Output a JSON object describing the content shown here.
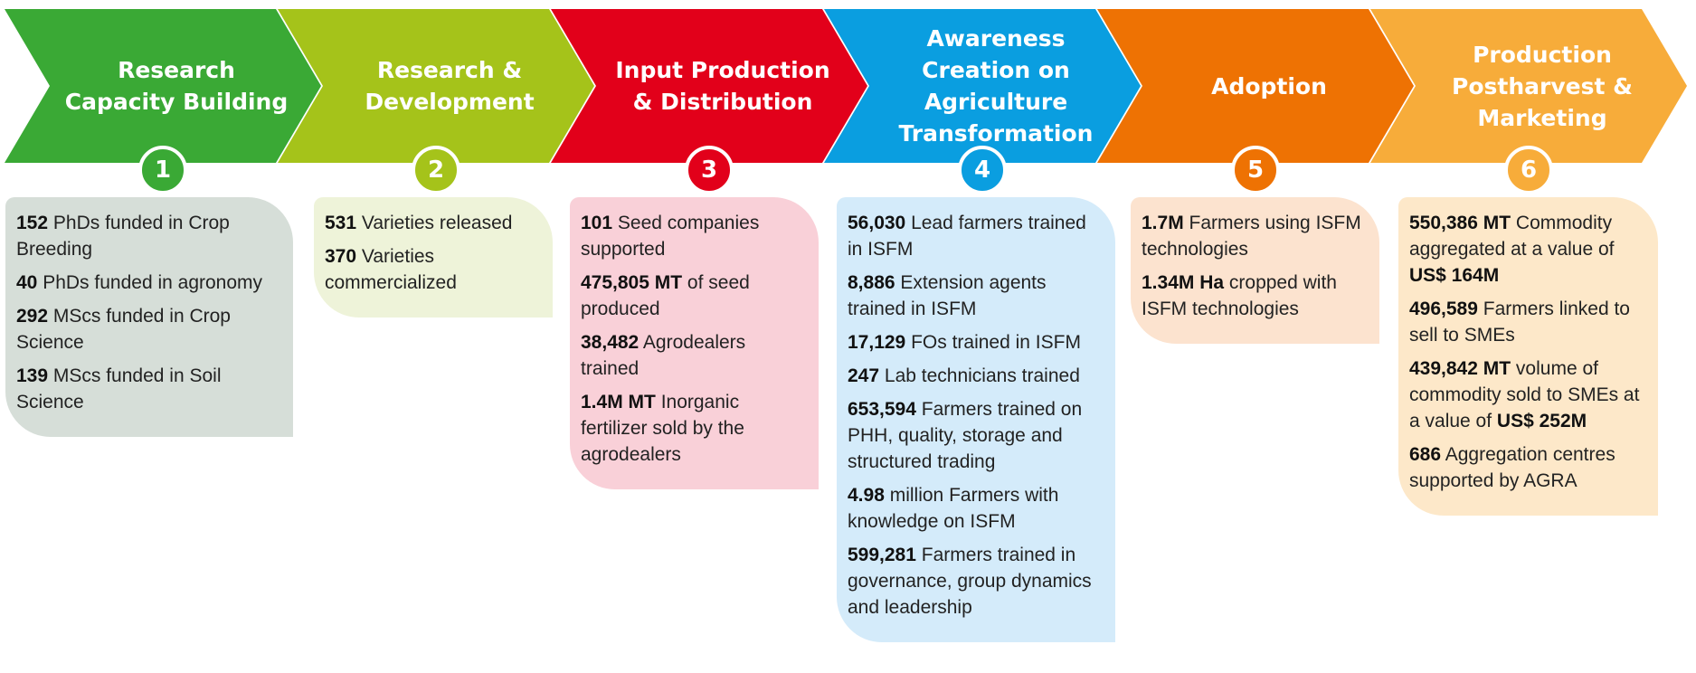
{
  "stages": [
    {
      "title": "Research Capacity Building",
      "number": "1",
      "color": "#3aa935",
      "card_color": "#d6ded8",
      "items": [
        [
          {
            "bold": "152"
          },
          {
            "text": "PhDs funded in Crop Breeding"
          }
        ],
        [
          {
            "bold": "40"
          },
          {
            "text": "PhDs funded in agronomy"
          }
        ],
        [
          {
            "bold": "292"
          },
          {
            "text": "MScs funded in Crop Science"
          }
        ],
        [
          {
            "bold": "139"
          },
          {
            "text": "MScs funded in Soil Science"
          }
        ]
      ]
    },
    {
      "title": "Research & Development",
      "number": "2",
      "color": "#a5c31a",
      "card_color": "#eef3d9",
      "items": [
        [
          {
            "bold": "531"
          },
          {
            "text": "Varieties released"
          }
        ],
        [
          {
            "bold": "370"
          },
          {
            "text": "Varieties commercialized"
          }
        ]
      ]
    },
    {
      "title": "Input Production & Distribution",
      "number": "3",
      "color": "#e2001a",
      "card_color": "#f9d0d8",
      "items": [
        [
          {
            "bold": "101"
          },
          {
            "text": "Seed companies supported"
          }
        ],
        [
          {
            "bold": "475,805 MT"
          },
          {
            "text": "of seed produced"
          }
        ],
        [
          {
            "bold": "38,482"
          },
          {
            "text": "Agrodealers trained"
          }
        ],
        [
          {
            "bold": "1.4M MT"
          },
          {
            "text": "Inorganic fertilizer sold by the agrodealers"
          }
        ]
      ]
    },
    {
      "title": "Awareness Creation on Agriculture Transformation",
      "number": "4",
      "color": "#0a9ee0",
      "card_color": "#d4ebfa",
      "items": [
        [
          {
            "bold": "56,030"
          },
          {
            "text": "Lead farmers trained in ISFM"
          }
        ],
        [
          {
            "bold": "8,886"
          },
          {
            "text": "Extension agents trained in ISFM"
          }
        ],
        [
          {
            "bold": "17,129"
          },
          {
            "text": "FOs trained in ISFM"
          }
        ],
        [
          {
            "bold": "247"
          },
          {
            "text": "Lab technicians trained"
          }
        ],
        [
          {
            "bold": "653,594"
          },
          {
            "text": "Farmers trained on PHH, quality, storage and structured trading"
          }
        ],
        [
          {
            "bold": "4.98"
          },
          {
            "text": "million Farmers with knowledge on ISFM"
          }
        ],
        [
          {
            "bold": "599,281"
          },
          {
            "text": "Farmers trained in governance, group dynamics and leadership"
          }
        ]
      ]
    },
    {
      "title": "Adoption",
      "number": "5",
      "color": "#ee7203",
      "card_color": "#fce3cf",
      "items": [
        [
          {
            "bold": "1.7M"
          },
          {
            "text": "Farmers using ISFM technologies"
          }
        ],
        [
          {
            "bold": "1.34M Ha"
          },
          {
            "text": "cropped with ISFM technologies"
          }
        ]
      ]
    },
    {
      "title": "Production Postharvest & Marketing",
      "number": "6",
      "color": "#f7ac3a",
      "card_color": "#fde8c9",
      "items": [
        [
          {
            "bold": "550,386 MT"
          },
          {
            "text": "Commodity aggregated at a value of"
          },
          {
            "bold": "US$ 164M"
          }
        ],
        [
          {
            "bold": "496,589"
          },
          {
            "text": "Farmers linked to sell to SMEs"
          }
        ],
        [
          {
            "bold": "439,842 MT"
          },
          {
            "text": "volume of commodity sold to SMEs at a value of"
          },
          {
            "bold": "US$ 252M"
          }
        ],
        [
          {
            "bold": "686"
          },
          {
            "text": "Aggregation centres supported by AGRA"
          }
        ]
      ]
    }
  ]
}
